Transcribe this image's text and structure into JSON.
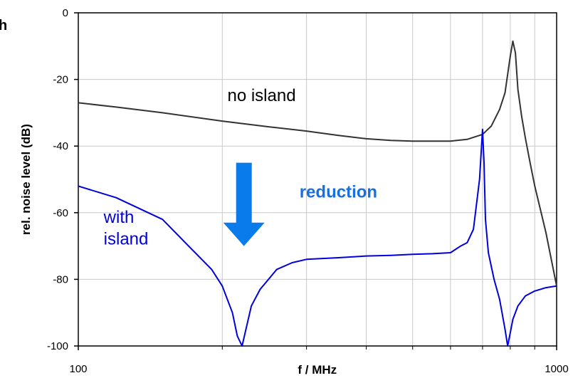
{
  "chart_data": {
    "type": "line",
    "title": "",
    "xlabel": "f / MHz",
    "ylabel": "rel. noise level (dB)",
    "x_scale": "log",
    "xlim": [
      100,
      1000
    ],
    "ylim": [
      -100,
      0
    ],
    "x_ticks": [
      100,
      1000
    ],
    "x_tick_labels": [
      "100",
      "1000"
    ],
    "x_minor_gridlines": [
      200,
      300,
      400,
      500,
      600,
      700,
      800,
      900
    ],
    "y_ticks": [
      0,
      -20,
      -40,
      -60,
      -80,
      -100
    ],
    "y_tick_labels": [
      "0",
      "-20",
      "-40",
      "-60",
      "-80",
      "-100"
    ],
    "grid": true,
    "edge_text": "h",
    "series": [
      {
        "name": "no island",
        "color": "#333333",
        "x": [
          100,
          120,
          150,
          200,
          250,
          300,
          350,
          400,
          450,
          500,
          550,
          600,
          650,
          700,
          730,
          760,
          780,
          800,
          810,
          820,
          830,
          845,
          860,
          880,
          900,
          950,
          1000
        ],
        "y": [
          -27,
          -28.3,
          -30,
          -32.5,
          -34.2,
          -35.5,
          -36.8,
          -37.8,
          -38.3,
          -38.5,
          -38.5,
          -38.5,
          -38,
          -36.5,
          -34,
          -29,
          -24,
          -13,
          -8.5,
          -12,
          -23,
          -31,
          -37.5,
          -45,
          -52,
          -66,
          -82
        ]
      },
      {
        "name": "with island",
        "color": "#0000dd",
        "x": [
          100,
          120,
          150,
          170,
          190,
          200,
          210,
          215,
          220,
          230,
          240,
          260,
          280,
          300,
          350,
          400,
          450,
          500,
          550,
          600,
          630,
          650,
          670,
          690,
          700,
          705,
          710,
          720,
          740,
          760,
          780,
          790,
          800,
          810,
          830,
          860,
          900,
          950,
          1000
        ],
        "y": [
          -52,
          -55.5,
          -62,
          -70,
          -77,
          -82,
          -90,
          -97,
          -100,
          -88,
          -83,
          -77,
          -75,
          -74,
          -73.5,
          -73,
          -72.8,
          -72.5,
          -72.3,
          -72,
          -70,
          -69,
          -65,
          -50,
          -35,
          -45,
          -62,
          -72,
          -80,
          -86,
          -95,
          -100,
          -96,
          -92,
          -88,
          -85,
          -83.5,
          -82.5,
          -82
        ]
      }
    ],
    "annotations": {
      "no_island": "no island",
      "with_island_line1": "with",
      "with_island_line2": "island",
      "reduction": "reduction"
    },
    "annotation_colors": {
      "no_island": "#000000",
      "with_island": "#0000dd",
      "reduction": "#1a6fe0",
      "arrow": "#0a7bea"
    }
  }
}
